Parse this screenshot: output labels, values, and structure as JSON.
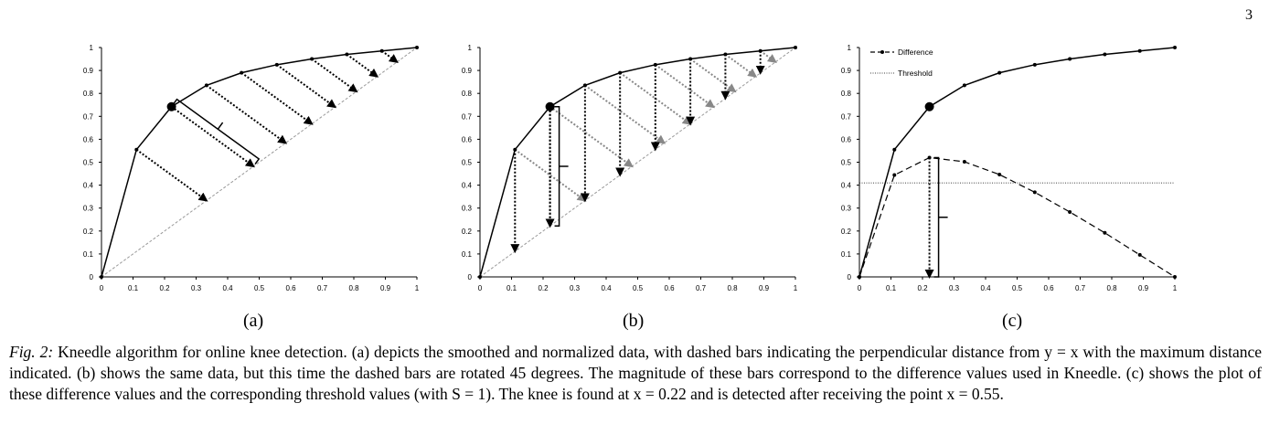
{
  "page_number": "3",
  "subfigure_labels": [
    "(a)",
    "(b)",
    "(c)"
  ],
  "caption": {
    "figure_label": "Fig. 2:",
    "text": "Kneedle algorithm for online knee detection. (a) depicts the smoothed and normalized data, with dashed bars indicating the perpendicular distance from y = x with the maximum distance indicated. (b) shows the same data, but this time the dashed bars are rotated 45 degrees. The magnitude of these bars correspond to the difference values used in Kneedle. (c) shows the plot of these difference values and the corresponding threshold values (with S = 1). The knee is found at x = 0.22 and is detected after receiving the point x = 0.55."
  },
  "colors": {
    "curve": "#000000",
    "diagonal": "#999999",
    "bar_dark": "#000000",
    "bar_gray": "#888888"
  },
  "chart_data": [
    {
      "type": "line",
      "panel": "(a)",
      "x": [
        0,
        0.111,
        0.222,
        0.333,
        0.444,
        0.556,
        0.667,
        0.778,
        0.889,
        1.0
      ],
      "series": [
        {
          "values": [
            0,
            0.555,
            0.742,
            0.835,
            0.89,
            0.925,
            0.95,
            0.97,
            0.985,
            1.0
          ]
        },
        {
          "values": [
            0,
            0.111,
            0.222,
            0.333,
            0.444,
            0.556,
            0.667,
            0.778,
            0.889,
            1.0
          ]
        }
      ],
      "knee": {
        "x": 0.222,
        "y": 0.742
      },
      "bars": "perpendicular",
      "xticks": [
        "0",
        "0.1",
        "0.2",
        "0.3",
        "0.4",
        "0.5",
        "0.6",
        "0.7",
        "0.8",
        "0.9",
        "1"
      ],
      "yticks": [
        "0",
        "0.1",
        "0.2",
        "0.3",
        "0.4",
        "0.5",
        "0.6",
        "0.7",
        "0.8",
        "0.9",
        "1"
      ],
      "xlim": [
        0,
        1
      ],
      "ylim": [
        0,
        1
      ]
    },
    {
      "type": "line",
      "panel": "(b)",
      "x": [
        0,
        0.111,
        0.222,
        0.333,
        0.444,
        0.556,
        0.667,
        0.778,
        0.889,
        1.0
      ],
      "series": [
        {
          "values": [
            0,
            0.555,
            0.742,
            0.835,
            0.89,
            0.925,
            0.95,
            0.97,
            0.985,
            1.0
          ]
        },
        {
          "values": [
            0,
            0.111,
            0.222,
            0.333,
            0.444,
            0.556,
            0.667,
            0.778,
            0.889,
            1.0
          ]
        }
      ],
      "knee": {
        "x": 0.222,
        "y": 0.742
      },
      "bars": "vertical-and-45",
      "xticks": [
        "0",
        "0.1",
        "0.2",
        "0.3",
        "0.4",
        "0.5",
        "0.6",
        "0.7",
        "0.8",
        "0.9",
        "1"
      ],
      "yticks": [
        "0",
        "0.1",
        "0.2",
        "0.3",
        "0.4",
        "0.5",
        "0.6",
        "0.7",
        "0.8",
        "0.9",
        "1"
      ],
      "xlim": [
        0,
        1
      ],
      "ylim": [
        0,
        1
      ]
    },
    {
      "type": "line",
      "panel": "(c)",
      "x": [
        0,
        0.111,
        0.222,
        0.333,
        0.444,
        0.556,
        0.667,
        0.778,
        0.889,
        1.0
      ],
      "series": [
        {
          "values": [
            0,
            0.555,
            0.742,
            0.835,
            0.89,
            0.925,
            0.95,
            0.97,
            0.985,
            1.0
          ]
        },
        {
          "name": "Difference",
          "values": [
            0,
            0.444,
            0.52,
            0.502,
            0.446,
            0.369,
            0.283,
            0.192,
            0.096,
            0.0
          ]
        }
      ],
      "threshold": {
        "name": "Threshold",
        "value": 0.41
      },
      "knee": {
        "x": 0.222,
        "y": 0.742
      },
      "legend": "top-left",
      "xticks": [
        "0",
        "0.1",
        "0.2",
        "0.3",
        "0.4",
        "0.5",
        "0.6",
        "0.7",
        "0.8",
        "0.9",
        "1"
      ],
      "yticks": [
        "0",
        "0.1",
        "0.2",
        "0.3",
        "0.4",
        "0.5",
        "0.6",
        "0.7",
        "0.8",
        "0.9",
        "1"
      ],
      "xlim": [
        0,
        1
      ],
      "ylim": [
        0,
        1
      ]
    }
  ]
}
